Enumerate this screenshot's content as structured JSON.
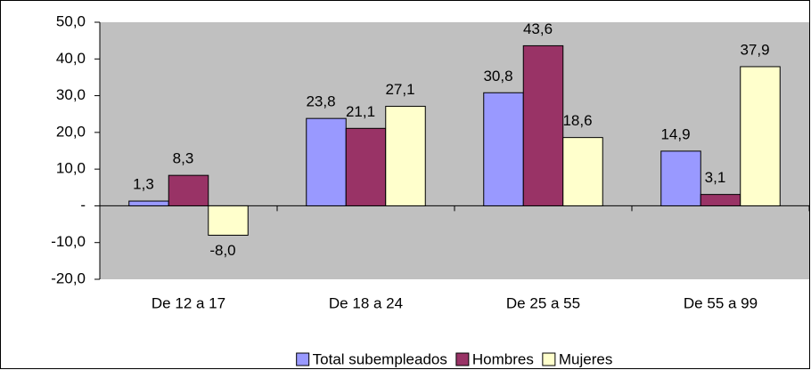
{
  "chart_data": {
    "type": "bar",
    "categories": [
      "De 12 a 17",
      "De 18 a 24",
      "De 25 a 55",
      "De 55 a 99"
    ],
    "series": [
      {
        "name": "Total subempleados",
        "color": "#9999ff",
        "values": [
          1.3,
          23.8,
          30.8,
          14.9
        ],
        "value_labels": [
          "1,3",
          "23,8",
          "30,8",
          "14,9"
        ]
      },
      {
        "name": "Hombres",
        "color": "#993366",
        "values": [
          8.3,
          21.1,
          43.6,
          3.1
        ],
        "value_labels": [
          "8,3",
          "21,1",
          "43,6",
          "3,1"
        ]
      },
      {
        "name": "Mujeres",
        "color": "#ffffcc",
        "values": [
          -8.0,
          27.1,
          18.6,
          37.9
        ],
        "value_labels": [
          "-8,0",
          "27,1",
          "18,6",
          "37,9"
        ]
      }
    ],
    "ylim": [
      -20,
      50
    ],
    "yticks": [
      {
        "value": -20,
        "label": "-20,0"
      },
      {
        "value": -10,
        "label": "-10,0"
      },
      {
        "value": 0,
        "label": "-"
      },
      {
        "value": 10,
        "label": "10,0"
      },
      {
        "value": 20,
        "label": "20,0"
      },
      {
        "value": 30,
        "label": "30,0"
      },
      {
        "value": 40,
        "label": "40,0"
      },
      {
        "value": 50,
        "label": "50,0"
      }
    ],
    "grid": false,
    "legend": "bottom"
  }
}
